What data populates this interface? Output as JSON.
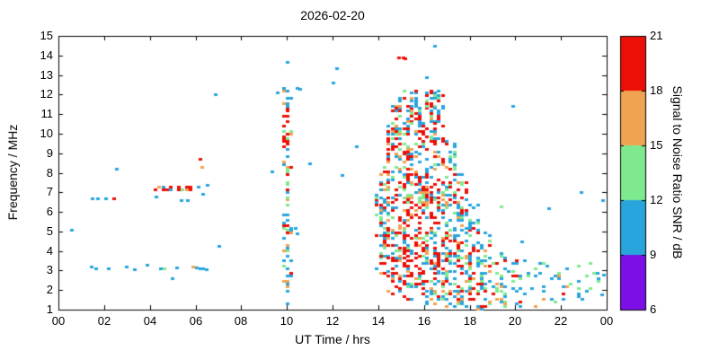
{
  "title": "2026-02-20",
  "chart_data": {
    "type": "scatter",
    "title": "2026-02-20",
    "xlabel": "UT Time / hrs",
    "ylabel": "Frequency / MHz",
    "xlim": [
      0,
      24
    ],
    "ylim": [
      1,
      15
    ],
    "x_ticks": {
      "values": [
        0,
        2,
        4,
        6,
        8,
        10,
        12,
        14,
        16,
        18,
        20,
        22,
        24
      ],
      "labels": [
        "00",
        "02",
        "04",
        "06",
        "08",
        "10",
        "12",
        "14",
        "16",
        "18",
        "20",
        "22",
        "00"
      ]
    },
    "y_ticks": {
      "values": [
        1,
        2,
        3,
        4,
        5,
        6,
        7,
        8,
        9,
        10,
        11,
        12,
        13,
        14,
        15
      ],
      "labels": [
        "1",
        "2",
        "3",
        "4",
        "5",
        "6",
        "7",
        "8",
        "9",
        "10",
        "11",
        "12",
        "13",
        "14",
        "15"
      ]
    },
    "colorbar": {
      "label": "Signal to Noise Ratio SNR / dB",
      "min": 6,
      "max": 21,
      "ticks": [
        6,
        9,
        12,
        15,
        18,
        21
      ],
      "bands": [
        {
          "range": [
            6,
            9
          ],
          "color": "#7c0fe8"
        },
        {
          "range": [
            9,
            12
          ],
          "color": "#29a5dd"
        },
        {
          "range": [
            12,
            15
          ],
          "color": "#7fe98f"
        },
        {
          "range": [
            15,
            18
          ],
          "color": "#f0a352"
        },
        {
          "range": [
            18,
            21
          ],
          "color": "#ec0f08"
        }
      ]
    },
    "marker": {
      "shape": "square",
      "w": 4,
      "h": 3
    },
    "quantize": {
      "t_step": 0.17,
      "f_step": 0.13
    },
    "points": [
      [
        0.6,
        5.1,
        10
      ],
      [
        1.45,
        3.2,
        10
      ],
      [
        1.65,
        3.1,
        10
      ],
      [
        2.2,
        3.1,
        10
      ],
      [
        3.0,
        3.2,
        10
      ],
      [
        3.35,
        3.05,
        10
      ],
      [
        3.9,
        3.3,
        10
      ],
      [
        1.5,
        6.7,
        10
      ],
      [
        1.75,
        6.7,
        10
      ],
      [
        2.1,
        6.7,
        10
      ],
      [
        2.45,
        6.7,
        20
      ],
      [
        2.55,
        8.2,
        10
      ],
      [
        4.3,
        6.8,
        10
      ],
      [
        4.5,
        3.1,
        10
      ],
      [
        4.65,
        3.1,
        13
      ],
      [
        5.0,
        2.6,
        10
      ],
      [
        5.2,
        3.15,
        10
      ],
      [
        5.4,
        6.6,
        10
      ],
      [
        5.65,
        6.6,
        10
      ],
      [
        5.9,
        3.2,
        16
      ],
      [
        6.05,
        3.15,
        10
      ],
      [
        6.2,
        3.1,
        10
      ],
      [
        6.35,
        3.1,
        10
      ],
      [
        6.5,
        3.05,
        10
      ],
      [
        6.2,
        8.7,
        20
      ],
      [
        6.3,
        8.3,
        16
      ],
      [
        6.35,
        6.9,
        10
      ],
      [
        6.55,
        7.4,
        10
      ],
      [
        6.9,
        12.0,
        10
      ],
      [
        7.05,
        4.25,
        10
      ],
      [
        9.35,
        8.05,
        10
      ],
      [
        9.6,
        12.1,
        10
      ],
      [
        10.05,
        13.65,
        10
      ],
      [
        10.45,
        12.35,
        10
      ],
      [
        10.6,
        12.3,
        10
      ],
      [
        10.4,
        5.2,
        10
      ],
      [
        10.45,
        4.9,
        10
      ],
      [
        11.0,
        8.5,
        10
      ],
      [
        12.05,
        12.6,
        10
      ],
      [
        12.2,
        13.35,
        10
      ],
      [
        12.45,
        7.9,
        10
      ],
      [
        13.05,
        9.35,
        10
      ],
      [
        14.9,
        13.9,
        20
      ],
      [
        15.1,
        13.9,
        20
      ],
      [
        15.2,
        13.85,
        20
      ],
      [
        16.5,
        14.5,
        10
      ],
      [
        16.15,
        12.9,
        10
      ],
      [
        19.4,
        6.3,
        13
      ],
      [
        19.9,
        11.4,
        10
      ],
      [
        20.3,
        4.5,
        10
      ],
      [
        21.5,
        6.2,
        10
      ],
      [
        22.9,
        7.0,
        10
      ],
      [
        23.3,
        3.4,
        13
      ],
      [
        23.6,
        2.9,
        10
      ],
      [
        23.85,
        6.6,
        10
      ],
      [
        23.8,
        1.8,
        10
      ],
      [
        23.9,
        2.8,
        10
      ]
    ],
    "dense_regions": [
      {
        "t": [
          4.2,
          6.25
        ],
        "f": [
          7.12,
          7.3
        ],
        "n": 18,
        "snr_dist": [
          0,
          0.33,
          0.06,
          0.11,
          0.5
        ]
      },
      {
        "t": [
          9.86,
          10.14
        ],
        "f": [
          1.3,
          4.7
        ],
        "n": 26,
        "snr_dist": [
          0,
          0.55,
          0.15,
          0.25,
          0.05
        ]
      },
      {
        "t": [
          9.86,
          10.14
        ],
        "f": [
          4.7,
          9.4
        ],
        "n": 36,
        "snr_dist": [
          0,
          0.4,
          0.2,
          0.2,
          0.2
        ]
      },
      {
        "t": [
          9.86,
          10.14
        ],
        "f": [
          9.4,
          11.5
        ],
        "n": 22,
        "snr_dist": [
          0,
          0.12,
          0.04,
          0.12,
          0.72
        ]
      },
      {
        "t": [
          9.86,
          10.14
        ],
        "f": [
          11.5,
          12.5
        ],
        "n": 8,
        "snr_dist": [
          0,
          0.75,
          0.1,
          0.15,
          0
        ]
      },
      {
        "t": [
          13.95,
          14.35
        ],
        "f": [
          2.6,
          8.6
        ],
        "n": 55,
        "snr_dist": [
          0,
          0.4,
          0.18,
          0.15,
          0.27
        ]
      },
      {
        "t": [
          14.35,
          15.0
        ],
        "f": [
          1.8,
          11.6
        ],
        "n": 150,
        "snr_dist": [
          0,
          0.28,
          0.15,
          0.15,
          0.42
        ]
      },
      {
        "t": [
          15.0,
          16.0
        ],
        "f": [
          1.5,
          11.9
        ],
        "n": 270,
        "snr_dist": [
          0,
          0.24,
          0.14,
          0.16,
          0.46
        ]
      },
      {
        "t": [
          16.0,
          16.9
        ],
        "f": [
          1.3,
          12.2
        ],
        "n": 230,
        "snr_dist": [
          0,
          0.28,
          0.15,
          0.15,
          0.42
        ]
      },
      {
        "t": [
          16.9,
          17.4
        ],
        "f": [
          1.2,
          9.6
        ],
        "n": 105,
        "snr_dist": [
          0,
          0.34,
          0.18,
          0.12,
          0.36
        ]
      },
      {
        "t": [
          17.4,
          17.9
        ],
        "f": [
          1.1,
          8.0
        ],
        "n": 78,
        "snr_dist": [
          0,
          0.38,
          0.2,
          0.12,
          0.3
        ]
      },
      {
        "t": [
          17.9,
          18.4
        ],
        "f": [
          1.0,
          6.6
        ],
        "n": 58,
        "snr_dist": [
          0,
          0.42,
          0.23,
          0.1,
          0.25
        ]
      },
      {
        "t": [
          18.4,
          18.9
        ],
        "f": [
          1.0,
          5.0
        ],
        "n": 40,
        "snr_dist": [
          0,
          0.45,
          0.25,
          0.1,
          0.2
        ]
      },
      {
        "t": [
          18.9,
          19.6
        ],
        "f": [
          1.0,
          4.0
        ],
        "n": 30,
        "snr_dist": [
          0,
          0.5,
          0.27,
          0.13,
          0.1
        ]
      },
      {
        "t": [
          19.6,
          20.6
        ],
        "f": [
          1.0,
          3.6
        ],
        "n": 26,
        "snr_dist": [
          0,
          0.52,
          0.28,
          0.1,
          0.1
        ]
      },
      {
        "t": [
          20.6,
          22.0
        ],
        "f": [
          1.2,
          3.4
        ],
        "n": 22,
        "snr_dist": [
          0,
          0.55,
          0.3,
          0.1,
          0.05
        ]
      },
      {
        "t": [
          22.0,
          23.95
        ],
        "f": [
          1.4,
          3.3
        ],
        "n": 20,
        "snr_dist": [
          0,
          0.6,
          0.3,
          0.05,
          0.05
        ]
      },
      {
        "t": [
          14.4,
          16.8
        ],
        "f": [
          10.9,
          12.3
        ],
        "n": 28,
        "snr_dist": [
          0,
          0.65,
          0.12,
          0.11,
          0.12
        ]
      }
    ]
  }
}
